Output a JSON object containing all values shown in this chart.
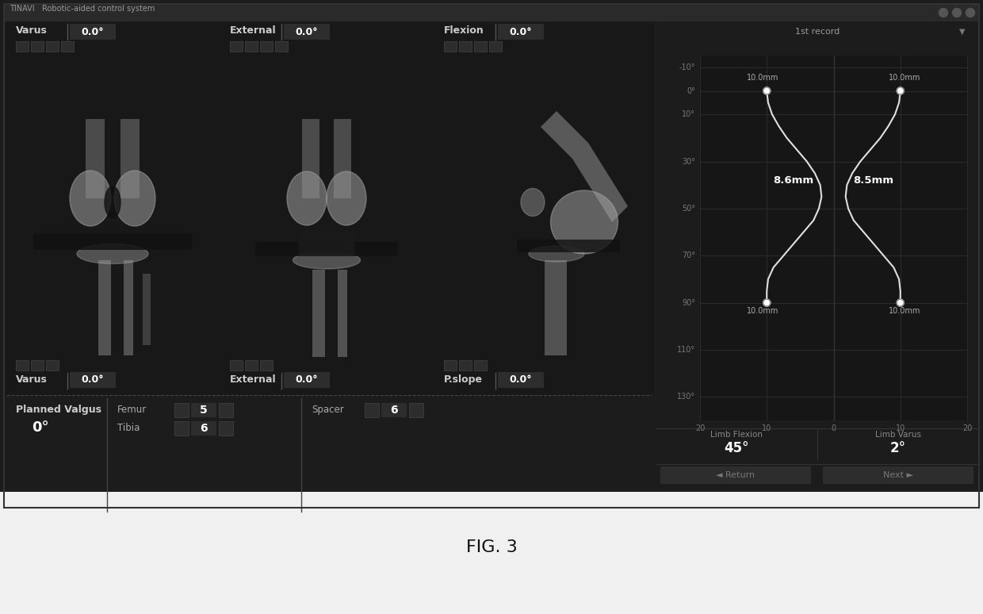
{
  "bg_color": "#1c1c1c",
  "title_bar_color": "#2e2e2e",
  "panel_bg": "#1a1a1a",
  "right_panel_bg": "#1e1e1e",
  "text_white": "#ffffff",
  "text_gray": "#aaaaaa",
  "text_light": "#cccccc",
  "separator_color": "#444444",
  "box_color": "#2d2d2d",
  "grid_line_color": "#2e2e2e",
  "title_text": "TINAVI   Robotic-aided control system",
  "fig_caption": "FIG. 3",
  "record_label": "1st record",
  "top_labels": [
    [
      "Varus",
      "0.0°"
    ],
    [
      "External",
      "0.0°"
    ],
    [
      "Flexion",
      "0.0°"
    ]
  ],
  "bottom_labels": [
    [
      "Varus",
      "0.0°"
    ],
    [
      "External",
      "0.0°"
    ],
    [
      "P.slope",
      "0.0°"
    ]
  ],
  "planned_valgus_label": "Planned Valgus",
  "planned_valgus_value": "0°",
  "femur_label": "Femur",
  "tibia_label": "Tibia",
  "femur_value": "5",
  "tibia_value": "6",
  "spacer_label": "Spacer",
  "spacer_value": "6",
  "limb_flexion_label": "Limb Flexion",
  "limb_flexion_value": "45°",
  "limb_varus_label": "Limb Varus",
  "limb_varus_value": "2°",
  "return_label": "Return",
  "next_label": "Next",
  "y_ticks": [
    "-10°",
    "0°",
    "10°",
    "30°",
    "50°",
    "70°",
    "90°",
    "110°",
    "130°"
  ],
  "y_vals": [
    -10,
    0,
    10,
    30,
    50,
    70,
    90,
    110,
    130
  ],
  "x_ticks": [
    "20",
    "10",
    "0",
    "10",
    "20"
  ],
  "x_vals": [
    -20,
    -10,
    0,
    10,
    20
  ],
  "annotation_86": "8.6mm",
  "annotation_85": "8.5mm",
  "ann_10mm_tl": "10.0mm",
  "ann_10mm_tr": "10.0mm",
  "ann_10mm_bl": "10.0mm",
  "ann_10mm_br": "10.0mm"
}
